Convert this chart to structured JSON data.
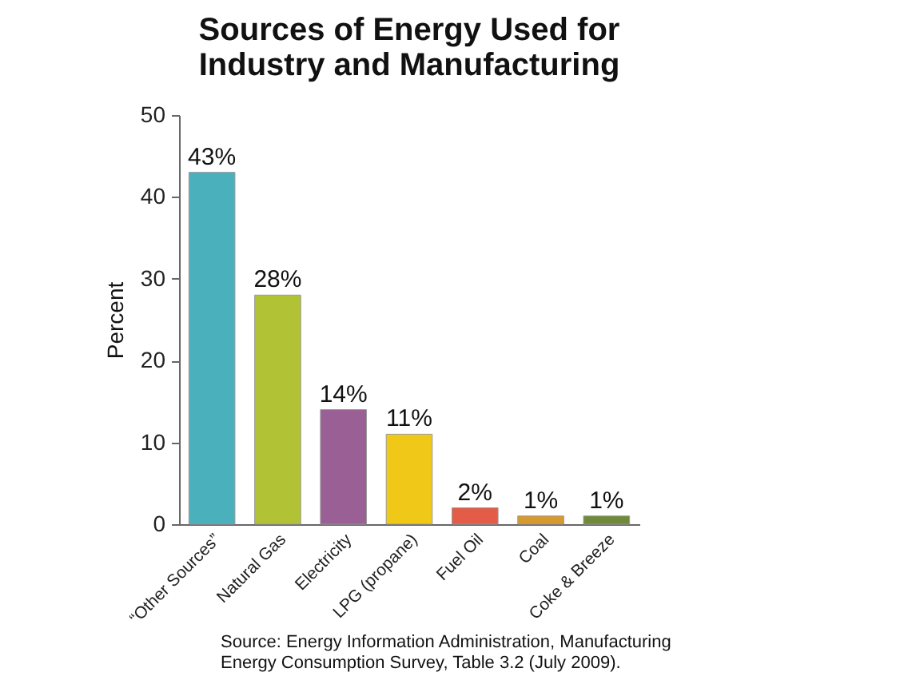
{
  "chart_data": {
    "type": "bar",
    "title": "Sources of Energy Used for Industry and Manufacturing",
    "ylabel": "Percent",
    "categories": [
      "“Other Sources”",
      "Natural Gas",
      "Electricity",
      "LPG (propane)",
      "Fuel Oil",
      "Coal",
      "Coke & Breeze"
    ],
    "values": [
      43,
      28,
      14,
      11,
      2,
      1,
      1
    ],
    "colors": [
      "#4ab0bc",
      "#b2c235",
      "#9a5f95",
      "#f0c818",
      "#e35c48",
      "#d89a2c",
      "#6f8a38"
    ],
    "value_labels": [
      "43%",
      "28%",
      "14%",
      "11%",
      "2%",
      "1%",
      "1%"
    ],
    "ylim": [
      0,
      50
    ],
    "yticks": [
      0,
      10,
      20,
      30,
      40,
      50
    ],
    "grid": false,
    "annotations": [
      "Source: Energy Information Administration, Manufacturing Energy Consumption Survey, Table 3.2 (July 2009)."
    ]
  }
}
